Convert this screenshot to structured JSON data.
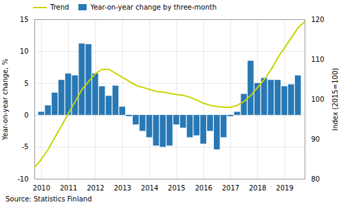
{
  "chart_data": {
    "type": "bar",
    "caption": "Source: Statistics Finland",
    "ylabel": "Year-on-year change, %",
    "y2label": "Index (2015=100)",
    "xlim": [
      2009.75,
      2019.75
    ],
    "xticks": [
      2010,
      2011,
      2012,
      2013,
      2014,
      2015,
      2016,
      2017,
      2018,
      2019
    ],
    "ylim": [
      -10,
      15
    ],
    "yticks": [
      -10,
      -5,
      0,
      5,
      10,
      15
    ],
    "y2lim": [
      80,
      120
    ],
    "y2ticks": [
      80,
      90,
      100,
      110,
      120
    ],
    "grid": true,
    "legend": "upper left",
    "series": [
      {
        "name": "Trend",
        "type": "line",
        "axis": "y2",
        "color": "#c8d400",
        "x": [
          2009.75,
          2010.0,
          2010.25,
          2010.5,
          2010.75,
          2011.0,
          2011.25,
          2011.5,
          2011.75,
          2012.0,
          2012.25,
          2012.5,
          2012.75,
          2013.0,
          2013.25,
          2013.5,
          2013.75,
          2014.0,
          2014.25,
          2014.5,
          2014.75,
          2015.0,
          2015.25,
          2015.5,
          2015.75,
          2016.0,
          2016.25,
          2016.5,
          2016.75,
          2017.0,
          2017.25,
          2017.5,
          2017.75,
          2018.0,
          2018.25,
          2018.5,
          2018.75,
          2019.0,
          2019.25,
          2019.5,
          2019.75
        ],
        "values": [
          83.0,
          85.0,
          87.5,
          90.5,
          93.5,
          96.5,
          99.5,
          102.5,
          104.5,
          106.5,
          107.5,
          107.5,
          106.5,
          105.5,
          104.5,
          103.5,
          103.0,
          102.5,
          102.0,
          101.8,
          101.5,
          101.2,
          101.0,
          100.5,
          99.8,
          99.0,
          98.5,
          98.2,
          98.0,
          98.0,
          98.5,
          99.5,
          101.0,
          103.0,
          105.0,
          107.5,
          110.5,
          113.0,
          115.5,
          118.0,
          119.5
        ]
      },
      {
        "name": "Year-on-year change by three-month",
        "type": "bar",
        "color": "#2878b5",
        "x": [
          2010.0,
          2010.25,
          2010.5,
          2010.75,
          2011.0,
          2011.25,
          2011.5,
          2011.75,
          2012.0,
          2012.25,
          2012.5,
          2012.75,
          2013.0,
          2013.25,
          2013.5,
          2013.75,
          2014.0,
          2014.25,
          2014.5,
          2014.75,
          2015.0,
          2015.25,
          2015.5,
          2015.75,
          2016.0,
          2016.25,
          2016.5,
          2016.75,
          2017.0,
          2017.25,
          2017.5,
          2017.75,
          2018.0,
          2018.25,
          2018.5,
          2018.75,
          2019.0,
          2019.25,
          2019.5
        ],
        "values": [
          0.5,
          1.5,
          3.5,
          5.5,
          6.5,
          6.2,
          11.2,
          11.1,
          6.5,
          4.5,
          3.0,
          4.6,
          1.3,
          -0.2,
          -1.5,
          -2.5,
          -3.5,
          -4.8,
          -5.0,
          -4.8,
          -1.5,
          -2.0,
          -3.5,
          -3.2,
          -4.5,
          -2.5,
          -5.4,
          -3.5,
          -0.2,
          0.5,
          3.3,
          8.5,
          5.0,
          5.8,
          5.5,
          5.5,
          4.5,
          4.8,
          6.2
        ]
      }
    ]
  }
}
